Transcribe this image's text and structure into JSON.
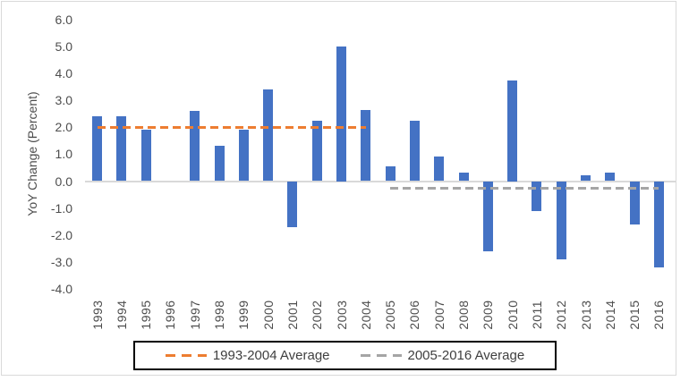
{
  "chart_data": {
    "type": "bar",
    "title": "",
    "xlabel": "",
    "ylabel": "YoY Change (Percent)",
    "categories": [
      "1993",
      "1994",
      "1995",
      "1996",
      "1997",
      "1998",
      "1999",
      "2000",
      "2001",
      "2002",
      "2003",
      "2004",
      "2005",
      "2006",
      "2007",
      "2008",
      "2009",
      "2010",
      "2011",
      "2012",
      "2013",
      "2014",
      "2015",
      "2016"
    ],
    "values": [
      2.4,
      2.4,
      1.9,
      0.0,
      2.6,
      1.3,
      1.9,
      3.4,
      -1.7,
      2.25,
      5.0,
      2.65,
      0.55,
      2.25,
      0.9,
      0.3,
      -2.6,
      3.75,
      -1.1,
      -2.9,
      0.2,
      0.3,
      -1.6,
      -3.2
    ],
    "ylim": [
      -4.0,
      6.0
    ],
    "ytick_step": 1.0,
    "yticks": [
      "6.0",
      "5.0",
      "4.0",
      "3.0",
      "2.0",
      "1.0",
      "0.0",
      "-1.0",
      "-2.0",
      "-3.0",
      "-4.0"
    ],
    "grid": false,
    "legend_position": "bottom",
    "bar_color": "#4472C4",
    "axis_line_color": "#d9d9d9",
    "axis_text_color": "#4d4d4d",
    "reference_lines": [
      {
        "name": "1993-2004 Average",
        "value": 2.0,
        "from": "1993",
        "to": "2004",
        "color": "#ED7D31",
        "style": "dashed"
      },
      {
        "name": "2005-2016 Average",
        "value": -0.26,
        "from": "2005",
        "to": "2016",
        "color": "#A5A5A5",
        "style": "dashed"
      }
    ]
  }
}
